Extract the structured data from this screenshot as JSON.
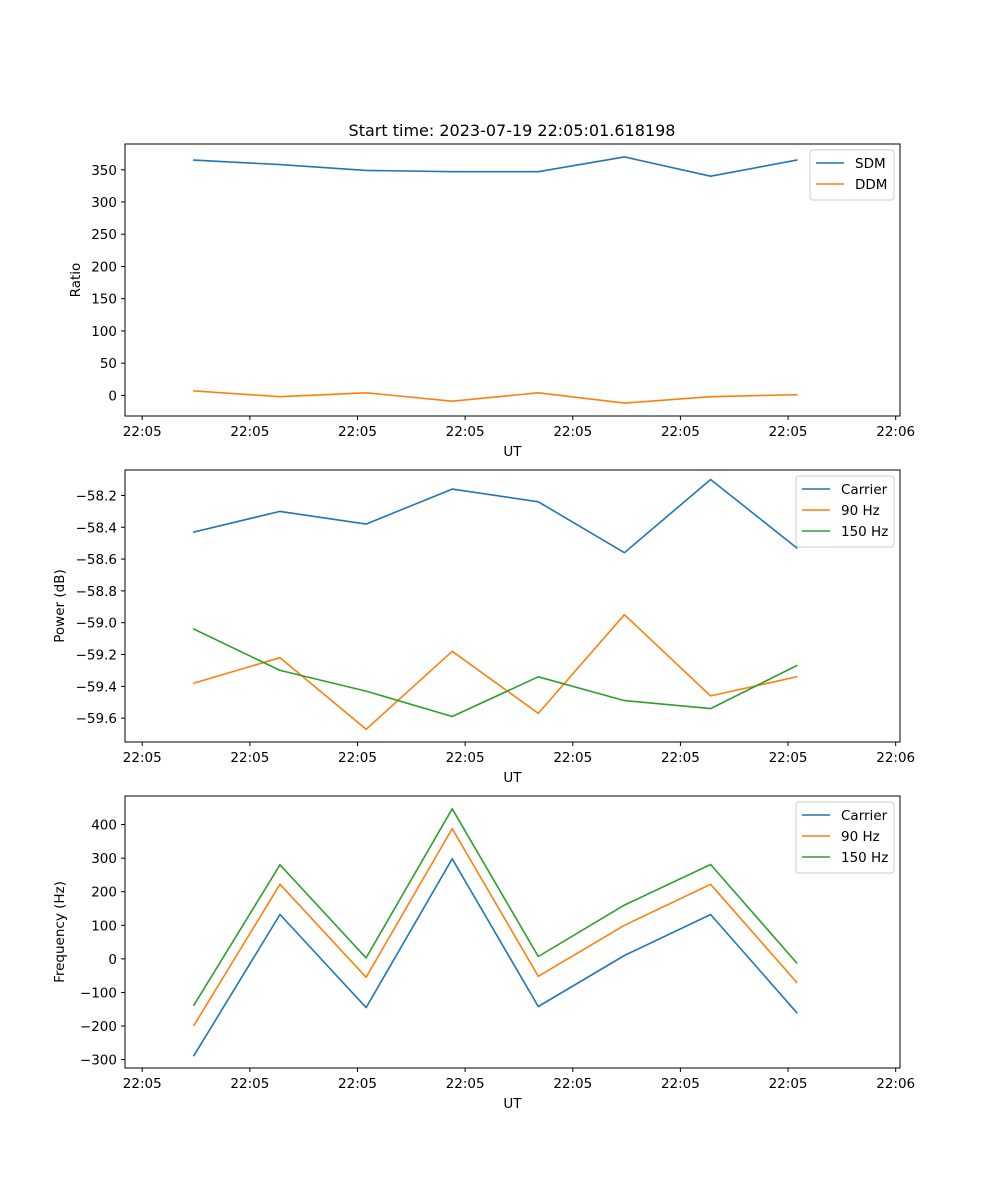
{
  "figure": {
    "title": "Start time: 2023-07-19 22:05:01.618198"
  },
  "chart_data": [
    {
      "type": "line",
      "title": "Start time: 2023-07-19 22:05:01.618198",
      "xlabel": "UT",
      "ylabel": "Ratio",
      "x_tick_labels": [
        "22:05",
        "22:05",
        "22:05",
        "22:05",
        "22:05",
        "22:05",
        "22:05"
      ],
      "x_tick_last": "22:06",
      "x": [
        1,
        2,
        3,
        4,
        5,
        6,
        7,
        8
      ],
      "xlim": [
        0.2,
        9.2
      ],
      "ylim": [
        -32,
        390
      ],
      "y_ticks": [
        0,
        50,
        100,
        150,
        200,
        250,
        300,
        350
      ],
      "legend_position": "top-right",
      "series": [
        {
          "name": "SDM",
          "color": "#1f77b4",
          "values": [
            365,
            358,
            349,
            347,
            347,
            370,
            340,
            365
          ]
        },
        {
          "name": "DDM",
          "color": "#ff7f0e",
          "values": [
            7,
            -2,
            4,
            -9,
            4,
            -12,
            -2,
            1
          ]
        }
      ]
    },
    {
      "type": "line",
      "title": "",
      "xlabel": "UT",
      "ylabel": "Power (dB)",
      "x_tick_labels": [
        "22:05",
        "22:05",
        "22:05",
        "22:05",
        "22:05",
        "22:05",
        "22:05"
      ],
      "x_tick_last": "22:06",
      "x": [
        1,
        2,
        3,
        4,
        5,
        6,
        7,
        8
      ],
      "xlim": [
        0.2,
        9.2
      ],
      "ylim": [
        -59.75,
        -58.04
      ],
      "y_ticks": [
        -58.2,
        -58.4,
        -58.6,
        -58.8,
        -59.0,
        -59.2,
        -59.4,
        -59.6
      ],
      "y_tick_labels": [
        "−58.2",
        "−58.4",
        "−58.6",
        "−58.8",
        "−59.0",
        "−59.2",
        "−59.4",
        "−59.6"
      ],
      "legend_position": "top-right",
      "series": [
        {
          "name": "Carrier",
          "color": "#1f77b4",
          "values": [
            -58.43,
            -58.3,
            -58.38,
            -58.16,
            -58.24,
            -58.56,
            -58.1,
            -58.53
          ]
        },
        {
          "name": "90 Hz",
          "color": "#ff7f0e",
          "values": [
            -59.38,
            -59.22,
            -59.67,
            -59.18,
            -59.57,
            -58.95,
            -59.46,
            -59.34
          ]
        },
        {
          "name": "150 Hz",
          "color": "#2ca02c",
          "values": [
            -59.04,
            -59.3,
            -59.43,
            -59.59,
            -59.34,
            -59.49,
            -59.54,
            -59.27
          ]
        }
      ]
    },
    {
      "type": "line",
      "title": "",
      "xlabel": "UT",
      "ylabel": "Frequency (Hz)",
      "x_tick_labels": [
        "22:05",
        "22:05",
        "22:05",
        "22:05",
        "22:05",
        "22:05",
        "22:05"
      ],
      "x_tick_last": "22:06",
      "x": [
        1,
        2,
        3,
        4,
        5,
        6,
        7,
        8
      ],
      "xlim": [
        0.2,
        9.2
      ],
      "ylim": [
        -325,
        485
      ],
      "y_ticks": [
        -300,
        -200,
        -100,
        0,
        100,
        200,
        300,
        400
      ],
      "y_tick_labels": [
        "−300",
        "−200",
        "−100",
        "0",
        "100",
        "200",
        "300",
        "400"
      ],
      "legend_position": "top-right",
      "series": [
        {
          "name": "Carrier",
          "color": "#1f77b4",
          "values": [
            -288,
            132,
            -145,
            298,
            -142,
            10,
            132,
            -160
          ]
        },
        {
          "name": "90 Hz",
          "color": "#ff7f0e",
          "values": [
            -198,
            222,
            -55,
            388,
            -52,
            100,
            222,
            -70
          ]
        },
        {
          "name": "150 Hz",
          "color": "#2ca02c",
          "values": [
            -138,
            280,
            3,
            447,
            7,
            160,
            281,
            -12
          ]
        }
      ]
    }
  ]
}
